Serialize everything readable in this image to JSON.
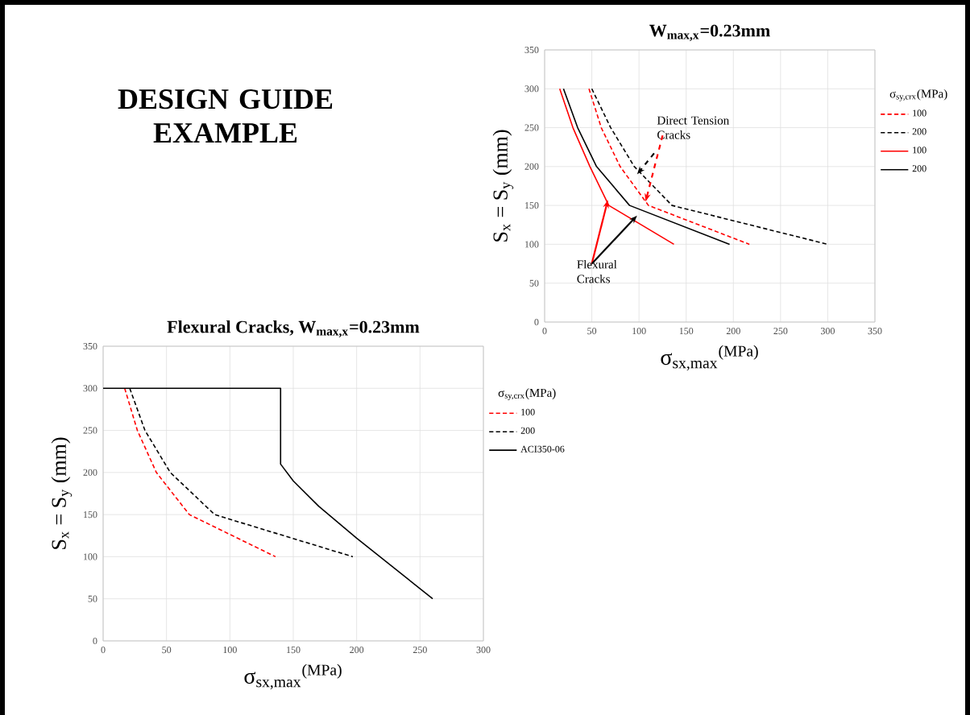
{
  "chart_data": [
    {
      "type": "other",
      "title": "DESIGN GUIDE EXAMPLE"
    },
    {
      "type": "line",
      "title": "W$_{max,x}$=0.23mm",
      "xlabel": "σ$_{sx,max}$$^{(MPa)}$",
      "ylabel": "S$_{x}$ = S$_{y}$ (mm)",
      "legend_title": "σ$_{sy,crx}$(MPa)",
      "xlim": [
        0,
        350
      ],
      "ylim": [
        0,
        350
      ],
      "xticks": [
        0,
        50,
        100,
        150,
        200,
        250,
        300,
        350
      ],
      "yticks": [
        0,
        50,
        100,
        150,
        200,
        250,
        300,
        350
      ],
      "grid": true,
      "legend": "right",
      "annotations": [
        {
          "text": "Direct Tension Cracks",
          "x": 107,
          "y": 155
        },
        {
          "text": "Flexural Cracks",
          "x": 67,
          "y": 157
        }
      ],
      "series": [
        {
          "name": "100",
          "color": "#ff0000",
          "line_style": "dashed",
          "x": [
            47,
            60,
            80,
            110,
            217
          ],
          "values": [
            300,
            250,
            200,
            150,
            100
          ]
        },
        {
          "name": "200",
          "color": "#000000",
          "line_style": "dashed",
          "x": [
            50,
            70,
            95,
            135,
            300
          ],
          "values": [
            300,
            250,
            200,
            150,
            100
          ]
        },
        {
          "name": "100",
          "color": "#ff0000",
          "line_style": "solid",
          "x": [
            16,
            30,
            48,
            68,
            137
          ],
          "values": [
            300,
            250,
            200,
            150,
            100
          ]
        },
        {
          "name": "200",
          "color": "#000000",
          "line_style": "solid",
          "x": [
            20,
            35,
            55,
            90,
            196
          ],
          "values": [
            300,
            250,
            200,
            150,
            100
          ]
        }
      ]
    },
    {
      "type": "line",
      "title": "Flexural Cracks, W$_{max,x}$=0.23mm",
      "xlabel": "σ$_{sx,max}$$^{(MPa)}$",
      "ylabel": "S$_{x}$ = S$_{y}$ (mm)",
      "legend_title": "σ$_{sy,crx}$(MPa)",
      "xlim": [
        0,
        300
      ],
      "ylim": [
        0,
        350
      ],
      "xticks": [
        0,
        50,
        100,
        150,
        200,
        250,
        300
      ],
      "yticks": [
        0,
        50,
        100,
        150,
        200,
        250,
        300,
        350
      ],
      "grid": true,
      "legend": "right",
      "series": [
        {
          "name": "100",
          "color": "#ff0000",
          "line_style": "dashed",
          "x": [
            17,
            27,
            42,
            68,
            136
          ],
          "values": [
            300,
            250,
            200,
            150,
            100
          ]
        },
        {
          "name": "200",
          "color": "#000000",
          "line_style": "dashed",
          "x": [
            21,
            33,
            53,
            88,
            197
          ],
          "values": [
            300,
            250,
            200,
            150,
            100
          ]
        },
        {
          "name": "ACI350-06",
          "color": "#000000",
          "line_style": "solid",
          "x": [
            0,
            140,
            140,
            150,
            170,
            200,
            230,
            260
          ],
          "values": [
            300,
            300,
            210,
            190,
            160,
            122,
            86,
            50
          ]
        }
      ]
    }
  ]
}
